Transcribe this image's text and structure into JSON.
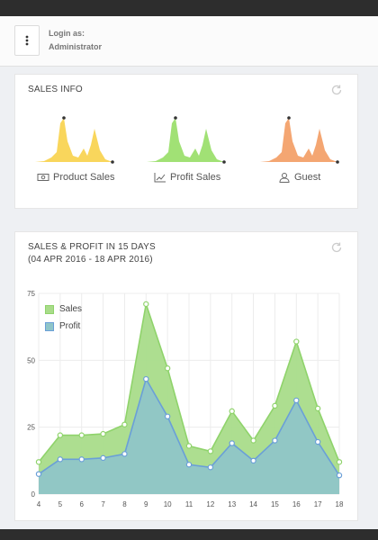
{
  "user": {
    "login_label": "Login as:",
    "username": "Administrator"
  },
  "sales_info": {
    "title": "SALES INFO",
    "items": [
      {
        "label": "Product Sales",
        "icon": "money-icon",
        "color": "#f9d65c"
      },
      {
        "label": "Profit Sales",
        "icon": "line-chart-icon",
        "color": "#a1e175"
      },
      {
        "label": "Guest",
        "icon": "user-icon",
        "color": "#f4a672"
      }
    ]
  },
  "sales_profit": {
    "title_line1": "SALES & PROFIT IN 15 DAYS",
    "title_line2": "(04 APR 2016 - 18 APR 2016)"
  },
  "chart_data": {
    "type": "area",
    "x": [
      4,
      5,
      6,
      7,
      8,
      9,
      10,
      11,
      12,
      13,
      14,
      15,
      16,
      17,
      18
    ],
    "ylim": [
      0,
      75
    ],
    "yticks": [
      0,
      25,
      50,
      75
    ],
    "grid": true,
    "legend_position": "top-left",
    "series": [
      {
        "name": "Sales",
        "color": "#a9dc8a",
        "line": "#8fd36b",
        "values": [
          12,
          22,
          22,
          22.5,
          26,
          71,
          47,
          18,
          16,
          31,
          20,
          33,
          57,
          32,
          12
        ]
      },
      {
        "name": "Profit",
        "color": "#8fc5c8",
        "line": "#6a9fd8",
        "values": [
          7.5,
          13,
          13,
          13.5,
          15,
          43,
          29,
          11,
          10,
          19,
          12.5,
          20,
          35,
          19.5,
          7
        ]
      }
    ]
  }
}
